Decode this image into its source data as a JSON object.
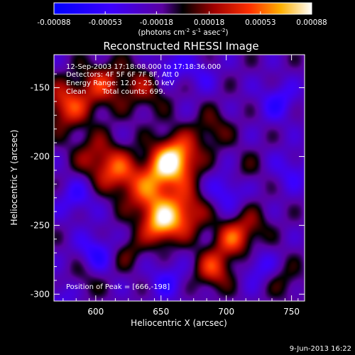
{
  "chart_data": {
    "type": "heatmap",
    "title": "Reconstructed RHESSI Image",
    "xlabel": "Heliocentric X (arcsec)",
    "ylabel": "Heliocentric Y (arcsec)",
    "xlim": [
      568,
      760
    ],
    "ylim": [
      -305,
      -126
    ],
    "xticks": [
      600,
      650,
      700,
      750
    ],
    "yticks": [
      -150,
      -200,
      -250,
      -300
    ],
    "colorbar": {
      "min": -0.00088,
      "max": 0.00088,
      "ticks": [
        "-0.00088",
        "-0.00053",
        "-0.00018",
        "0.00018",
        "0.00053",
        "0.00088"
      ],
      "unit_label_main": "(photons cm",
      "unit_label_sup1": "-2",
      "unit_label_mid1": " s",
      "unit_label_sup2": "-1",
      "unit_label_mid2": " asec",
      "unit_label_sup3": "-2",
      "unit_label_end": ")"
    },
    "annotations": {
      "time_range": "12-Sep-2003 17:18:08.000 to 17:18:36.000",
      "detectors": "Detectors: 4F 5F 6F 7F 8F, Att 0",
      "energy_range": "Energy Range: 12.0 - 25.0 keV",
      "clean": "Clean",
      "total_counts": "Total counts: 699.",
      "peak": "Position of Peak = [666,-198]"
    },
    "footer_date": "9-Jun-2013 16:22",
    "sources": [
      {
        "x": 662,
        "y": -201,
        "amp": 1.0,
        "sigma": 12
      },
      {
        "x": 650,
        "y": -211,
        "amp": 0.55,
        "sigma": 11
      },
      {
        "x": 640,
        "y": -230,
        "amp": 0.6,
        "sigma": 12
      },
      {
        "x": 650,
        "y": -250,
        "amp": 0.85,
        "sigma": 10
      },
      {
        "x": 668,
        "y": -240,
        "amp": 0.7,
        "sigma": 12
      },
      {
        "x": 705,
        "y": -260,
        "amp": 0.65,
        "sigma": 10
      },
      {
        "x": 690,
        "y": -282,
        "amp": 0.65,
        "sigma": 10
      },
      {
        "x": 618,
        "y": -212,
        "amp": 0.65,
        "sigma": 11
      },
      {
        "x": 600,
        "y": -200,
        "amp": 0.45,
        "sigma": 12
      },
      {
        "x": 578,
        "y": -163,
        "amp": 0.7,
        "sigma": 12
      },
      {
        "x": 605,
        "y": -148,
        "amp": 0.55,
        "sigma": 12
      },
      {
        "x": 638,
        "y": -150,
        "amp": 0.4,
        "sigma": 13
      },
      {
        "x": 690,
        "y": -180,
        "amp": 0.35,
        "sigma": 10
      },
      {
        "x": 720,
        "y": -250,
        "amp": 0.3,
        "sigma": 10
      },
      {
        "x": 715,
        "y": -210,
        "amp": 0.2,
        "sigma": 9
      },
      {
        "x": 745,
        "y": -290,
        "amp": 0.25,
        "sigma": 10
      },
      {
        "x": 625,
        "y": -270,
        "amp": 0.3,
        "sigma": 9
      },
      {
        "x": 590,
        "y": -290,
        "amp": 0.25,
        "sigma": 10
      },
      {
        "x": 655,
        "y": -135,
        "amp": -0.45,
        "sigma": 9
      },
      {
        "x": 600,
        "y": -270,
        "amp": -0.45,
        "sigma": 10
      },
      {
        "x": 585,
        "y": -230,
        "amp": -0.35,
        "sigma": 10
      },
      {
        "x": 700,
        "y": -225,
        "amp": -0.4,
        "sigma": 10
      },
      {
        "x": 740,
        "y": -160,
        "amp": -0.4,
        "sigma": 10
      },
      {
        "x": 750,
        "y": -210,
        "amp": -0.3,
        "sigma": 10
      },
      {
        "x": 725,
        "y": -280,
        "amp": -0.35,
        "sigma": 9
      },
      {
        "x": 655,
        "y": -290,
        "amp": -0.35,
        "sigma": 10
      },
      {
        "x": 575,
        "y": -300,
        "amp": -0.3,
        "sigma": 9
      },
      {
        "x": 680,
        "y": -140,
        "amp": -0.25,
        "sigma": 9
      }
    ]
  }
}
